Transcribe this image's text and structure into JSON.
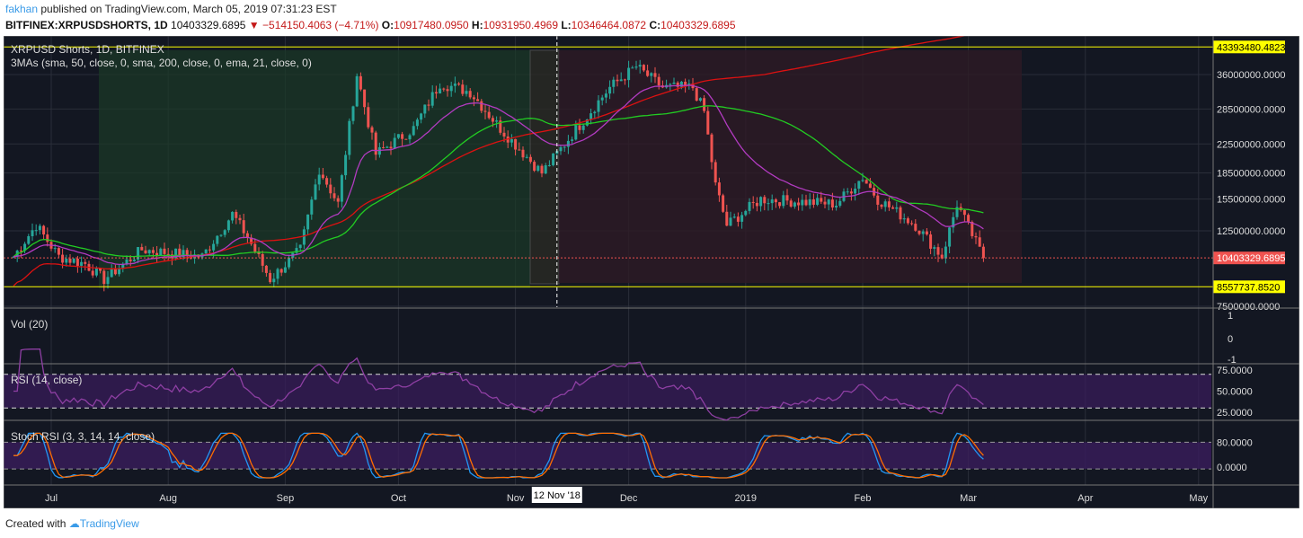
{
  "header": {
    "user": "fakhan",
    "published": "published on TradingView.com, March 05, 2019 07:31:23 EST",
    "symbol": "BITFINEX:XRPUSDSHORTS, 1D",
    "last": "10403329.6895",
    "change": "▼ −514150.4063 (−4.71%)",
    "o_label": "O:",
    "o": "10917480.0950",
    "h_label": "H:",
    "h": "10931950.4969",
    "l_label": "L:",
    "l": "10346464.0872",
    "c_label": "C:",
    "c": "10403329.6895"
  },
  "legend": {
    "title": "XRPUSD Shorts, 1D, BITFINEX",
    "mas": "3MAs (sma, 50, close, 0, sma, 200, close, 0, ema, 21, close, 0)",
    "vol": "Vol (20)",
    "rsi": "RSI (14, close)",
    "stoch": "Stoch RSI (3, 3, 14, 14, close)"
  },
  "footer": {
    "created": "Created with",
    "brand": "TradingView"
  },
  "colors": {
    "bg": "#131722",
    "up": "#26a69a",
    "down": "#ef5350",
    "ma50": "#22cc22",
    "ma200": "#dd1111",
    "ema21": "#b23bc1",
    "rsi": "#8e3fa3",
    "k": "#2196f3",
    "d": "#ff6d00",
    "hline": "#ffff00"
  },
  "chart_data": {
    "type": "candlestick",
    "yscale": "log",
    "price_ticks": [
      "36000000.0000",
      "28500000.0000",
      "22500000.0000",
      "18500000.0000",
      "15500000.0000",
      "12500000.0000",
      "7500000.0000"
    ],
    "price_tick_values": [
      36000000,
      28500000,
      22500000,
      18500000,
      15500000,
      12500000,
      7500000
    ],
    "hline_labels": [
      "43393480.4823",
      "8557737.8520"
    ],
    "hline_values": [
      43393480.4823,
      8557737.852
    ],
    "last_price_label": "10403329.6895",
    "last_price": 10403329.6895,
    "vol_ticks": [
      "1",
      "0",
      "-1"
    ],
    "rsi_ticks": [
      "75.0000",
      "50.0000",
      "25.0000"
    ],
    "stoch_ticks": [
      "80.0000",
      "0.0000"
    ],
    "x_ticks": [
      "Jul",
      "Aug",
      "Sep",
      "Oct",
      "Nov",
      "Dec",
      "2019",
      "Feb",
      "Mar",
      "Apr",
      "May"
    ],
    "x_tick_days": [
      0,
      31,
      62,
      92,
      123,
      153,
      184,
      215,
      243,
      274,
      304
    ],
    "crosshair_label": "12 Nov '18",
    "crosshair_day": 134,
    "start_day": -10,
    "key_closes": [
      [
        -10,
        10.5
      ],
      [
        -4,
        13
      ],
      [
        2,
        10.5
      ],
      [
        9,
        10
      ],
      [
        14,
        9
      ],
      [
        24,
        11
      ],
      [
        40,
        10.5
      ],
      [
        48,
        14
      ],
      [
        52,
        12
      ],
      [
        58,
        9
      ],
      [
        66,
        11
      ],
      [
        71,
        19
      ],
      [
        76,
        15
      ],
      [
        81,
        36
      ],
      [
        86,
        21
      ],
      [
        96,
        25
      ],
      [
        103,
        34
      ],
      [
        111,
        32
      ],
      [
        119,
        25
      ],
      [
        130,
        18.5
      ],
      [
        138,
        24
      ],
      [
        148,
        33
      ],
      [
        155,
        38
      ],
      [
        162,
        33
      ],
      [
        170,
        33
      ],
      [
        173,
        28
      ],
      [
        176,
        17
      ],
      [
        179,
        13
      ],
      [
        188,
        15.5
      ],
      [
        208,
        15
      ],
      [
        215,
        18
      ],
      [
        219,
        15.5
      ],
      [
        229,
        13
      ],
      [
        236,
        10.5
      ],
      [
        240,
        15
      ],
      [
        247,
        10.4
      ]
    ]
  }
}
